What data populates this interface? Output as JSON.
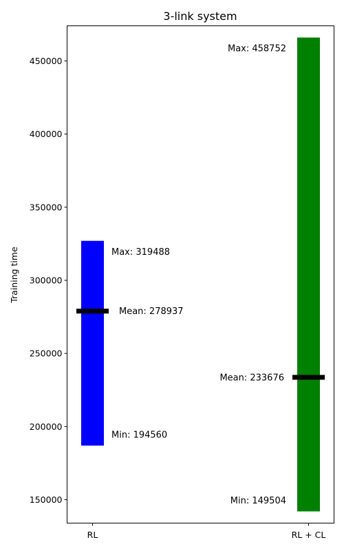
{
  "chart_data": {
    "type": "bar",
    "title": "3-link system",
    "ylabel": "Training time",
    "xlabel": "",
    "ylim": [
      134000,
      474000
    ],
    "yticks": [
      150000,
      200000,
      250000,
      300000,
      350000,
      400000,
      450000
    ],
    "yticklabels": [
      "150000",
      "200000",
      "250000",
      "300000",
      "350000",
      "400000",
      "450000"
    ],
    "categories": [
      "RL",
      "RL + CL"
    ],
    "bars": [
      {
        "category": "RL",
        "color": "#0000ff",
        "bottom": 187000,
        "top": 327000,
        "mean": 278937,
        "labels": {
          "max": "Max: 319488",
          "mean": "Mean: 278937",
          "min": "Min: 194560"
        },
        "label_side": "right"
      },
      {
        "category": "RL + CL",
        "color": "#008000",
        "bottom": 142000,
        "top": 466000,
        "mean": 233676,
        "labels": {
          "max": "Max: 458752",
          "mean": "Mean: 233676",
          "min": "Min: 149504"
        },
        "label_side": "left"
      }
    ],
    "label_values": {
      "RL": {
        "max": 319488,
        "mean": 278937,
        "min": 194560
      },
      "RL + CL": {
        "max": 458752,
        "mean": 233676,
        "min": 149504
      }
    },
    "mean_marker_color": "#000000",
    "grid": false,
    "legend": "none"
  }
}
